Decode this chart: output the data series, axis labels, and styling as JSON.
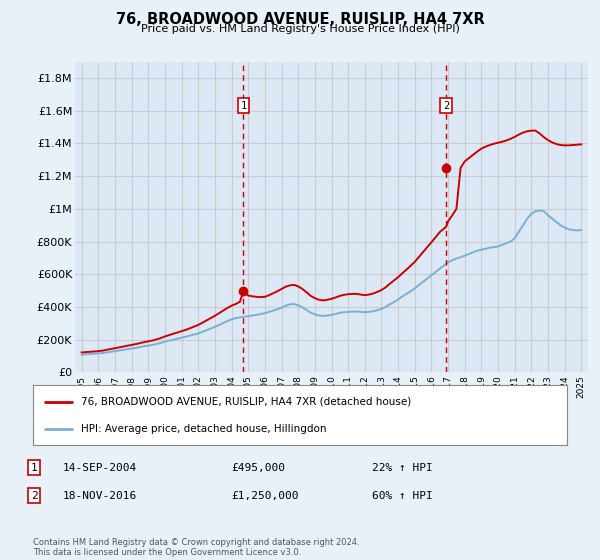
{
  "title": "76, BROADWOOD AVENUE, RUISLIP, HA4 7XR",
  "subtitle": "Price paid vs. HM Land Registry's House Price Index (HPI)",
  "background_color": "#e8f0f8",
  "plot_bg_color": "#dce8f5",
  "grid_color": "#cccccc",
  "ylim": [
    0,
    1900000
  ],
  "yticks": [
    0,
    200000,
    400000,
    600000,
    800000,
    1000000,
    1200000,
    1400000,
    1600000,
    1800000
  ],
  "ytick_labels": [
    "£0",
    "£200K",
    "£400K",
    "£600K",
    "£800K",
    "£1M",
    "£1.2M",
    "£1.4M",
    "£1.6M",
    "£1.8M"
  ],
  "sale1_year": 2004.71,
  "sale1_price": 495000,
  "sale1_label": "1",
  "sale1_date": "14-SEP-2004",
  "sale1_hpi_pct": "22%",
  "sale2_year": 2016.88,
  "sale2_price": 1250000,
  "sale2_label": "2",
  "sale2_date": "18-NOV-2016",
  "sale2_hpi_pct": "60%",
  "red_line_color": "#cc0000",
  "blue_line_color": "#7ab0d4",
  "sale_marker_color": "#cc0000",
  "vline_color": "#cc0000",
  "marker_box_color": "#cc0000",
  "legend_label_red": "76, BROADWOOD AVENUE, RUISLIP, HA4 7XR (detached house)",
  "legend_label_blue": "HPI: Average price, detached house, Hillingdon",
  "footer_text": "Contains HM Land Registry data © Crown copyright and database right 2024.\nThis data is licensed under the Open Government Licence v3.0.",
  "hpi_data_years": [
    1995.0,
    1995.25,
    1995.5,
    1995.75,
    1996.0,
    1996.25,
    1996.5,
    1996.75,
    1997.0,
    1997.25,
    1997.5,
    1997.75,
    1998.0,
    1998.25,
    1998.5,
    1998.75,
    1999.0,
    1999.25,
    1999.5,
    1999.75,
    2000.0,
    2000.25,
    2000.5,
    2000.75,
    2001.0,
    2001.25,
    2001.5,
    2001.75,
    2002.0,
    2002.25,
    2002.5,
    2002.75,
    2003.0,
    2003.25,
    2003.5,
    2003.75,
    2004.0,
    2004.25,
    2004.5,
    2004.75,
    2005.0,
    2005.25,
    2005.5,
    2005.75,
    2006.0,
    2006.25,
    2006.5,
    2006.75,
    2007.0,
    2007.25,
    2007.5,
    2007.75,
    2008.0,
    2008.25,
    2008.5,
    2008.75,
    2009.0,
    2009.25,
    2009.5,
    2009.75,
    2010.0,
    2010.25,
    2010.5,
    2010.75,
    2011.0,
    2011.25,
    2011.5,
    2011.75,
    2012.0,
    2012.25,
    2012.5,
    2012.75,
    2013.0,
    2013.25,
    2013.5,
    2013.75,
    2014.0,
    2014.25,
    2014.5,
    2014.75,
    2015.0,
    2015.25,
    2015.5,
    2015.75,
    2016.0,
    2016.25,
    2016.5,
    2016.75,
    2017.0,
    2017.25,
    2017.5,
    2017.75,
    2018.0,
    2018.25,
    2018.5,
    2018.75,
    2019.0,
    2019.25,
    2019.5,
    2019.75,
    2020.0,
    2020.25,
    2020.5,
    2020.75,
    2021.0,
    2021.25,
    2021.5,
    2021.75,
    2022.0,
    2022.25,
    2022.5,
    2022.75,
    2023.0,
    2023.25,
    2023.5,
    2023.75,
    2024.0,
    2024.25,
    2024.5,
    2024.75,
    2025.0
  ],
  "hpi_values": [
    108000,
    110000,
    112000,
    114000,
    116000,
    118000,
    122000,
    126000,
    130000,
    134000,
    138000,
    142000,
    146000,
    150000,
    155000,
    160000,
    164000,
    168000,
    174000,
    180000,
    188000,
    194000,
    200000,
    206000,
    212000,
    218000,
    225000,
    232000,
    238000,
    248000,
    258000,
    268000,
    278000,
    290000,
    302000,
    314000,
    324000,
    332000,
    336000,
    340000,
    344000,
    348000,
    352000,
    356000,
    362000,
    370000,
    378000,
    386000,
    396000,
    408000,
    416000,
    418000,
    410000,
    398000,
    382000,
    365000,
    355000,
    348000,
    345000,
    348000,
    352000,
    358000,
    364000,
    368000,
    370000,
    372000,
    372000,
    370000,
    368000,
    370000,
    374000,
    380000,
    388000,
    400000,
    416000,
    430000,
    446000,
    464000,
    480000,
    496000,
    514000,
    534000,
    554000,
    574000,
    594000,
    614000,
    634000,
    654000,
    672000,
    686000,
    696000,
    704000,
    714000,
    724000,
    734000,
    744000,
    750000,
    756000,
    762000,
    766000,
    770000,
    780000,
    790000,
    800000,
    820000,
    860000,
    900000,
    940000,
    970000,
    985000,
    990000,
    985000,
    960000,
    940000,
    920000,
    900000,
    885000,
    875000,
    870000,
    868000,
    870000
  ],
  "red_data_years": [
    1995.0,
    1995.25,
    1995.5,
    1995.75,
    1996.0,
    1996.25,
    1996.5,
    1996.75,
    1997.0,
    1997.25,
    1997.5,
    1997.75,
    1998.0,
    1998.25,
    1998.5,
    1998.75,
    1999.0,
    1999.25,
    1999.5,
    1999.75,
    2000.0,
    2000.25,
    2000.5,
    2000.75,
    2001.0,
    2001.25,
    2001.5,
    2001.75,
    2002.0,
    2002.25,
    2002.5,
    2002.75,
    2003.0,
    2003.25,
    2003.5,
    2003.75,
    2004.0,
    2004.25,
    2004.5,
    2004.71,
    2005.0,
    2005.25,
    2005.5,
    2005.75,
    2006.0,
    2006.25,
    2006.5,
    2006.75,
    2007.0,
    2007.25,
    2007.5,
    2007.75,
    2008.0,
    2008.25,
    2008.5,
    2008.75,
    2009.0,
    2009.25,
    2009.5,
    2009.75,
    2010.0,
    2010.25,
    2010.5,
    2010.75,
    2011.0,
    2011.25,
    2011.5,
    2011.75,
    2012.0,
    2012.25,
    2012.5,
    2012.75,
    2013.0,
    2013.25,
    2013.5,
    2013.75,
    2014.0,
    2014.25,
    2014.5,
    2014.75,
    2015.0,
    2015.25,
    2015.5,
    2015.75,
    2016.0,
    2016.25,
    2016.5,
    2016.88,
    2017.0,
    2017.25,
    2017.5,
    2017.75,
    2018.0,
    2018.25,
    2018.5,
    2018.75,
    2019.0,
    2019.25,
    2019.5,
    2019.75,
    2020.0,
    2020.25,
    2020.5,
    2020.75,
    2021.0,
    2021.25,
    2021.5,
    2021.75,
    2022.0,
    2022.25,
    2022.5,
    2022.75,
    2023.0,
    2023.25,
    2023.5,
    2023.75,
    2024.0,
    2024.25,
    2024.5,
    2024.75,
    2025.0
  ],
  "red_values": [
    122000,
    124000,
    126000,
    128000,
    130000,
    133000,
    138000,
    143000,
    148000,
    153000,
    158000,
    163000,
    168000,
    173000,
    179000,
    185000,
    190000,
    195000,
    202000,
    210000,
    220000,
    228000,
    236000,
    244000,
    252000,
    260000,
    270000,
    280000,
    290000,
    304000,
    318000,
    332000,
    346000,
    362000,
    378000,
    394000,
    408000,
    418000,
    432000,
    495000,
    470000,
    465000,
    462000,
    460000,
    462000,
    472000,
    484000,
    496000,
    510000,
    524000,
    532000,
    535000,
    526000,
    510000,
    490000,
    468000,
    454000,
    444000,
    440000,
    444000,
    450000,
    458000,
    468000,
    474000,
    478000,
    480000,
    480000,
    476000,
    472000,
    476000,
    482000,
    492000,
    504000,
    520000,
    542000,
    562000,
    582000,
    606000,
    628000,
    652000,
    676000,
    706000,
    736000,
    766000,
    796000,
    826000,
    858000,
    890000,
    924000,
    960000,
    1000000,
    1250000,
    1290000,
    1310000,
    1330000,
    1350000,
    1368000,
    1380000,
    1390000,
    1398000,
    1404000,
    1410000,
    1418000,
    1428000,
    1440000,
    1454000,
    1466000,
    1474000,
    1478000,
    1478000,
    1460000,
    1438000,
    1420000,
    1406000,
    1396000,
    1390000,
    1388000,
    1388000,
    1390000,
    1392000,
    1394000
  ]
}
